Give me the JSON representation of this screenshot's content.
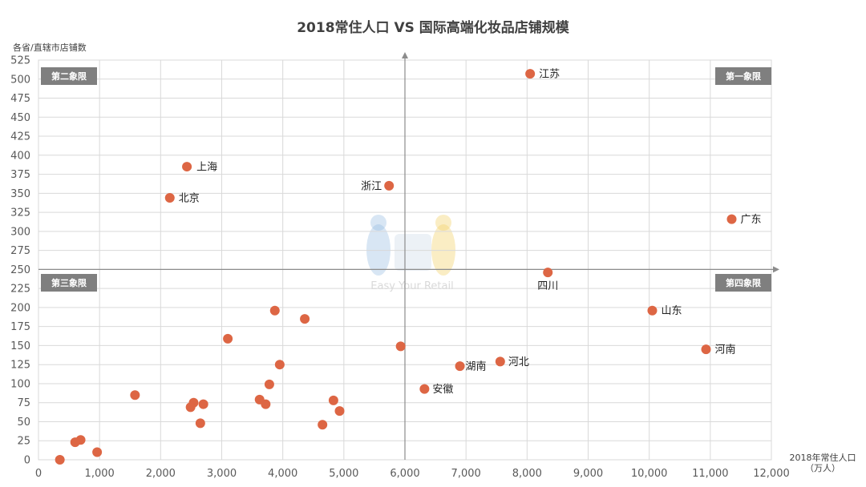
{
  "chart_data": {
    "type": "scatter",
    "title": "2018常住人口 VS 国际高端化妆品店铺规模",
    "ylabel": "各省/直辖市店铺数",
    "xlabel_line1": "2018年常住人口",
    "xlabel_line2": "（万人）",
    "xlim": [
      0,
      12000
    ],
    "ylim": [
      0,
      525
    ],
    "x_ticks": [
      "0",
      "1,000",
      "2,000",
      "3,000",
      "4,000",
      "5,000",
      "6,000",
      "7,000",
      "8,000",
      "9,000",
      "10,000",
      "11,000",
      "12,000"
    ],
    "y_ticks": [
      "0",
      "25",
      "50",
      "75",
      "100",
      "125",
      "150",
      "175",
      "200",
      "225",
      "250",
      "275",
      "300",
      "325",
      "350",
      "375",
      "400",
      "425",
      "450",
      "475",
      "500",
      "525"
    ],
    "grid": true,
    "quadrant_center": {
      "x": 6000,
      "y": 250
    },
    "quadrants": {
      "first": "第一象限",
      "second": "第二象限",
      "third": "第三象限",
      "fourth": "第四象限"
    },
    "point_color": "#dd6644",
    "points": [
      {
        "x": 8050,
        "y": 507,
        "label": "江苏"
      },
      {
        "x": 2430,
        "y": 385,
        "label": "上海"
      },
      {
        "x": 2150,
        "y": 344,
        "label": "北京"
      },
      {
        "x": 5740,
        "y": 360,
        "label": "浙江"
      },
      {
        "x": 11350,
        "y": 316,
        "label": "广东"
      },
      {
        "x": 8340,
        "y": 246,
        "label": "四川"
      },
      {
        "x": 10050,
        "y": 196,
        "label": "山东"
      },
      {
        "x": 10930,
        "y": 145,
        "label": "河南"
      },
      {
        "x": 7560,
        "y": 129,
        "label": "河北"
      },
      {
        "x": 6900,
        "y": 123,
        "label": "湖南"
      },
      {
        "x": 6320,
        "y": 93,
        "label": "安徽"
      },
      {
        "x": 3870,
        "y": 196,
        "label": ""
      },
      {
        "x": 4360,
        "y": 185,
        "label": ""
      },
      {
        "x": 3100,
        "y": 159,
        "label": ""
      },
      {
        "x": 5930,
        "y": 149,
        "label": ""
      },
      {
        "x": 3950,
        "y": 125,
        "label": ""
      },
      {
        "x": 3780,
        "y": 99,
        "label": ""
      },
      {
        "x": 1580,
        "y": 85,
        "label": ""
      },
      {
        "x": 3620,
        "y": 79,
        "label": ""
      },
      {
        "x": 4830,
        "y": 78,
        "label": ""
      },
      {
        "x": 2540,
        "y": 75,
        "label": ""
      },
      {
        "x": 2700,
        "y": 73,
        "label": ""
      },
      {
        "x": 3720,
        "y": 73,
        "label": ""
      },
      {
        "x": 2490,
        "y": 69,
        "label": ""
      },
      {
        "x": 4930,
        "y": 64,
        "label": ""
      },
      {
        "x": 2650,
        "y": 48,
        "label": ""
      },
      {
        "x": 4650,
        "y": 46,
        "label": ""
      },
      {
        "x": 690,
        "y": 26,
        "label": ""
      },
      {
        "x": 600,
        "y": 23,
        "label": ""
      },
      {
        "x": 960,
        "y": 10,
        "label": ""
      },
      {
        "x": 350,
        "y": 0,
        "label": ""
      }
    ]
  },
  "watermark": {
    "tagline": "Easy Your Retail",
    "colors": [
      "#8fb8e0",
      "#f2d16b"
    ]
  }
}
